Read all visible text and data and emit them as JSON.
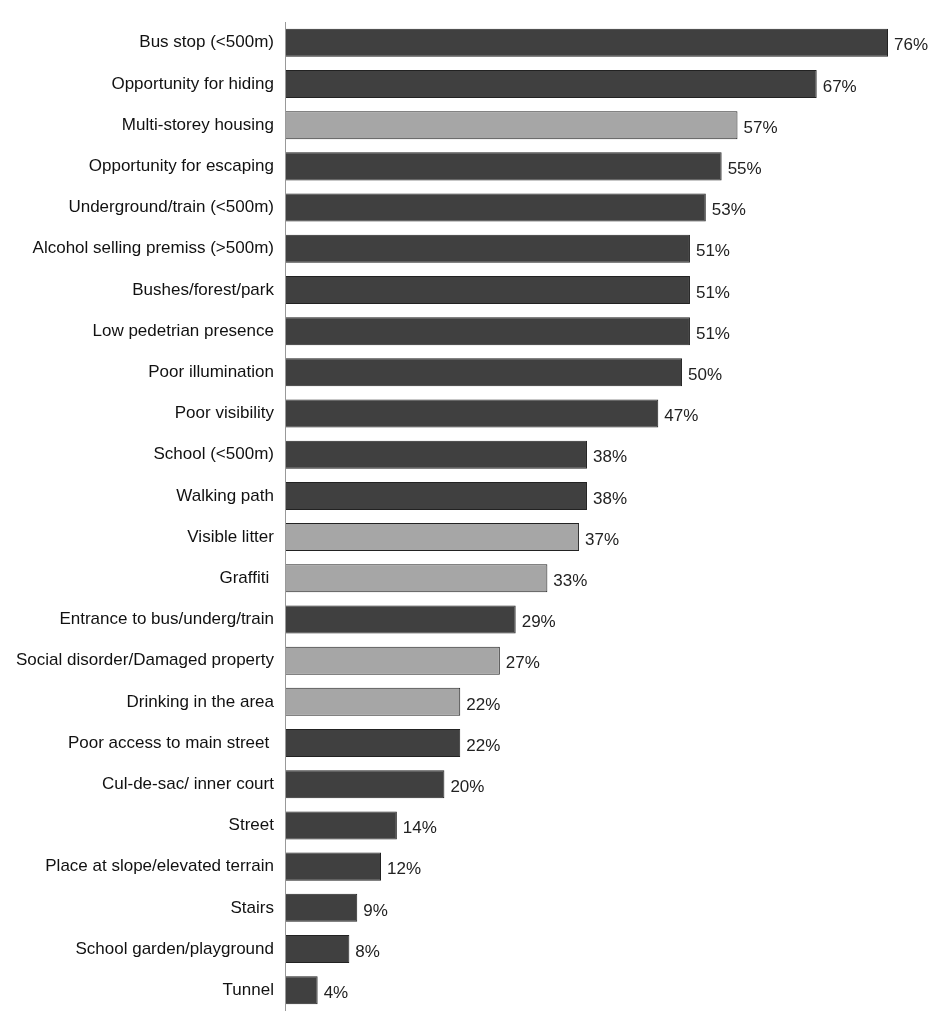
{
  "chart_data": {
    "type": "bar",
    "orientation": "horizontal",
    "categories": [
      "Bus stop (<500m)",
      "Opportunity for hiding",
      "Multi-storey housing",
      "Opportunity for escaping",
      "Underground/train (<500m)",
      "Alcohol selling premiss (>500m)",
      "Bushes/forest/park",
      "Low pedetrian presence",
      "Poor illumination",
      "Poor visibility",
      "School (<500m)",
      "Walking path",
      "Visible litter",
      "Graffiti ",
      "Entrance to bus/underg/train",
      "Social disorder/Damaged property",
      "Drinking in the area",
      "Poor access to main street ",
      "Cul-de-sac/ inner court",
      "Street",
      "Place at slope/elevated terrain",
      "Stairs",
      "School garden/playground",
      "Tunnel"
    ],
    "values": [
      76,
      67,
      57,
      55,
      53,
      51,
      51,
      51,
      50,
      47,
      38,
      38,
      37,
      33,
      29,
      27,
      22,
      22,
      20,
      14,
      12,
      9,
      8,
      4
    ],
    "value_labels": [
      "76%",
      "67%",
      "57%",
      "55%",
      "53%",
      "51%",
      "51%",
      "51%",
      "50%",
      "47%",
      "38%",
      "38%",
      "37%",
      "33%",
      "29%",
      "27%",
      "22%",
      "22%",
      "20%",
      "14%",
      "12%",
      "9%",
      "8%",
      "4%"
    ],
    "colors": [
      "#404040",
      "#404040",
      "#a6a6a6",
      "#404040",
      "#404040",
      "#404040",
      "#404040",
      "#404040",
      "#404040",
      "#404040",
      "#404040",
      "#404040",
      "#a6a6a6",
      "#a6a6a6",
      "#404040",
      "#a6a6a6",
      "#a6a6a6",
      "#404040",
      "#404040",
      "#404040",
      "#404040",
      "#404040",
      "#404040",
      "#404040"
    ],
    "legend": false
  }
}
